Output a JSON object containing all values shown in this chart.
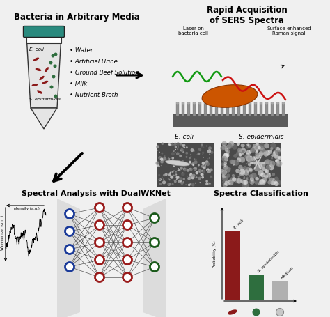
{
  "bg_color": "#f0f0f0",
  "title_bacteria": "Bacteria in Arbitrary Media",
  "title_sers": "Rapid Acquisition\nof SERS Spectra",
  "title_spectral": "Spectral Analysis with DualWKNet",
  "title_classification": "Spectra Classification",
  "bullet_items": [
    "Water",
    "Artificial Urine",
    "Ground Beef Solution",
    "Milk",
    "Nutrient Broth"
  ],
  "laser_label": "Laser on\nbacteria cell",
  "raman_label": "Surface-enhanced\nRaman signal",
  "ecoli_label": "E. coli",
  "epidermidis_label": "S. epidermidis",
  "prob_label": "Probability (%)",
  "intensity_label": "Intensity (a.u.)",
  "wavenumber_label": "Wavenumber (cm⁻¹)",
  "bar_labels": [
    "E. coli",
    "S. epidermidis",
    "Medium"
  ],
  "bar_values": [
    0.82,
    0.3,
    0.22
  ],
  "bar_colors": [
    "#8b1a1a",
    "#2e6e3e",
    "#b0b0b0"
  ],
  "ecoli_color": "#8b1a1a",
  "epidermidis_color": "#2e6e3e",
  "teal_color": "#2a8a7e",
  "node_blue": "#1a3a99",
  "node_red": "#991a1a",
  "node_green": "#1a5a1a",
  "arrow_color": "#111111",
  "wire_color": "#333333"
}
